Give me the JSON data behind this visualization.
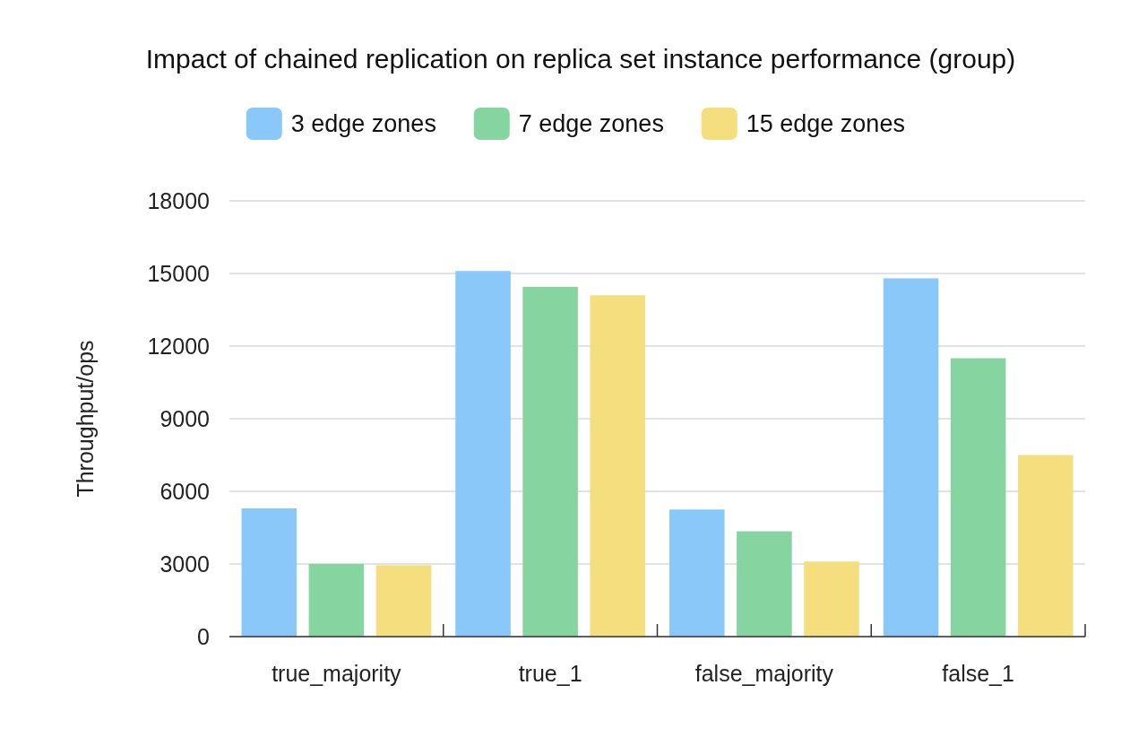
{
  "chart_data": {
    "type": "bar",
    "title": "Impact of chained replication on replica set instance performance (group)",
    "ylabel": "Throughput/ops",
    "categories": [
      "true_majority",
      "true_1",
      "false_majority",
      "false_1"
    ],
    "series": [
      {
        "name": "3 edge zones",
        "color": "#8ac8fa",
        "values": [
          5300,
          15100,
          5250,
          14800
        ]
      },
      {
        "name": "7 edge zones",
        "color": "#86d5a0",
        "values": [
          3000,
          14450,
          4350,
          11500
        ]
      },
      {
        "name": "15 edge zones",
        "color": "#f5de7e",
        "values": [
          2950,
          14100,
          3100,
          7500
        ]
      }
    ],
    "ylim": [
      0,
      18000
    ],
    "yticks": [
      0,
      3000,
      6000,
      9000,
      12000,
      15000,
      18000
    ],
    "grid": "y",
    "legend": "top"
  }
}
